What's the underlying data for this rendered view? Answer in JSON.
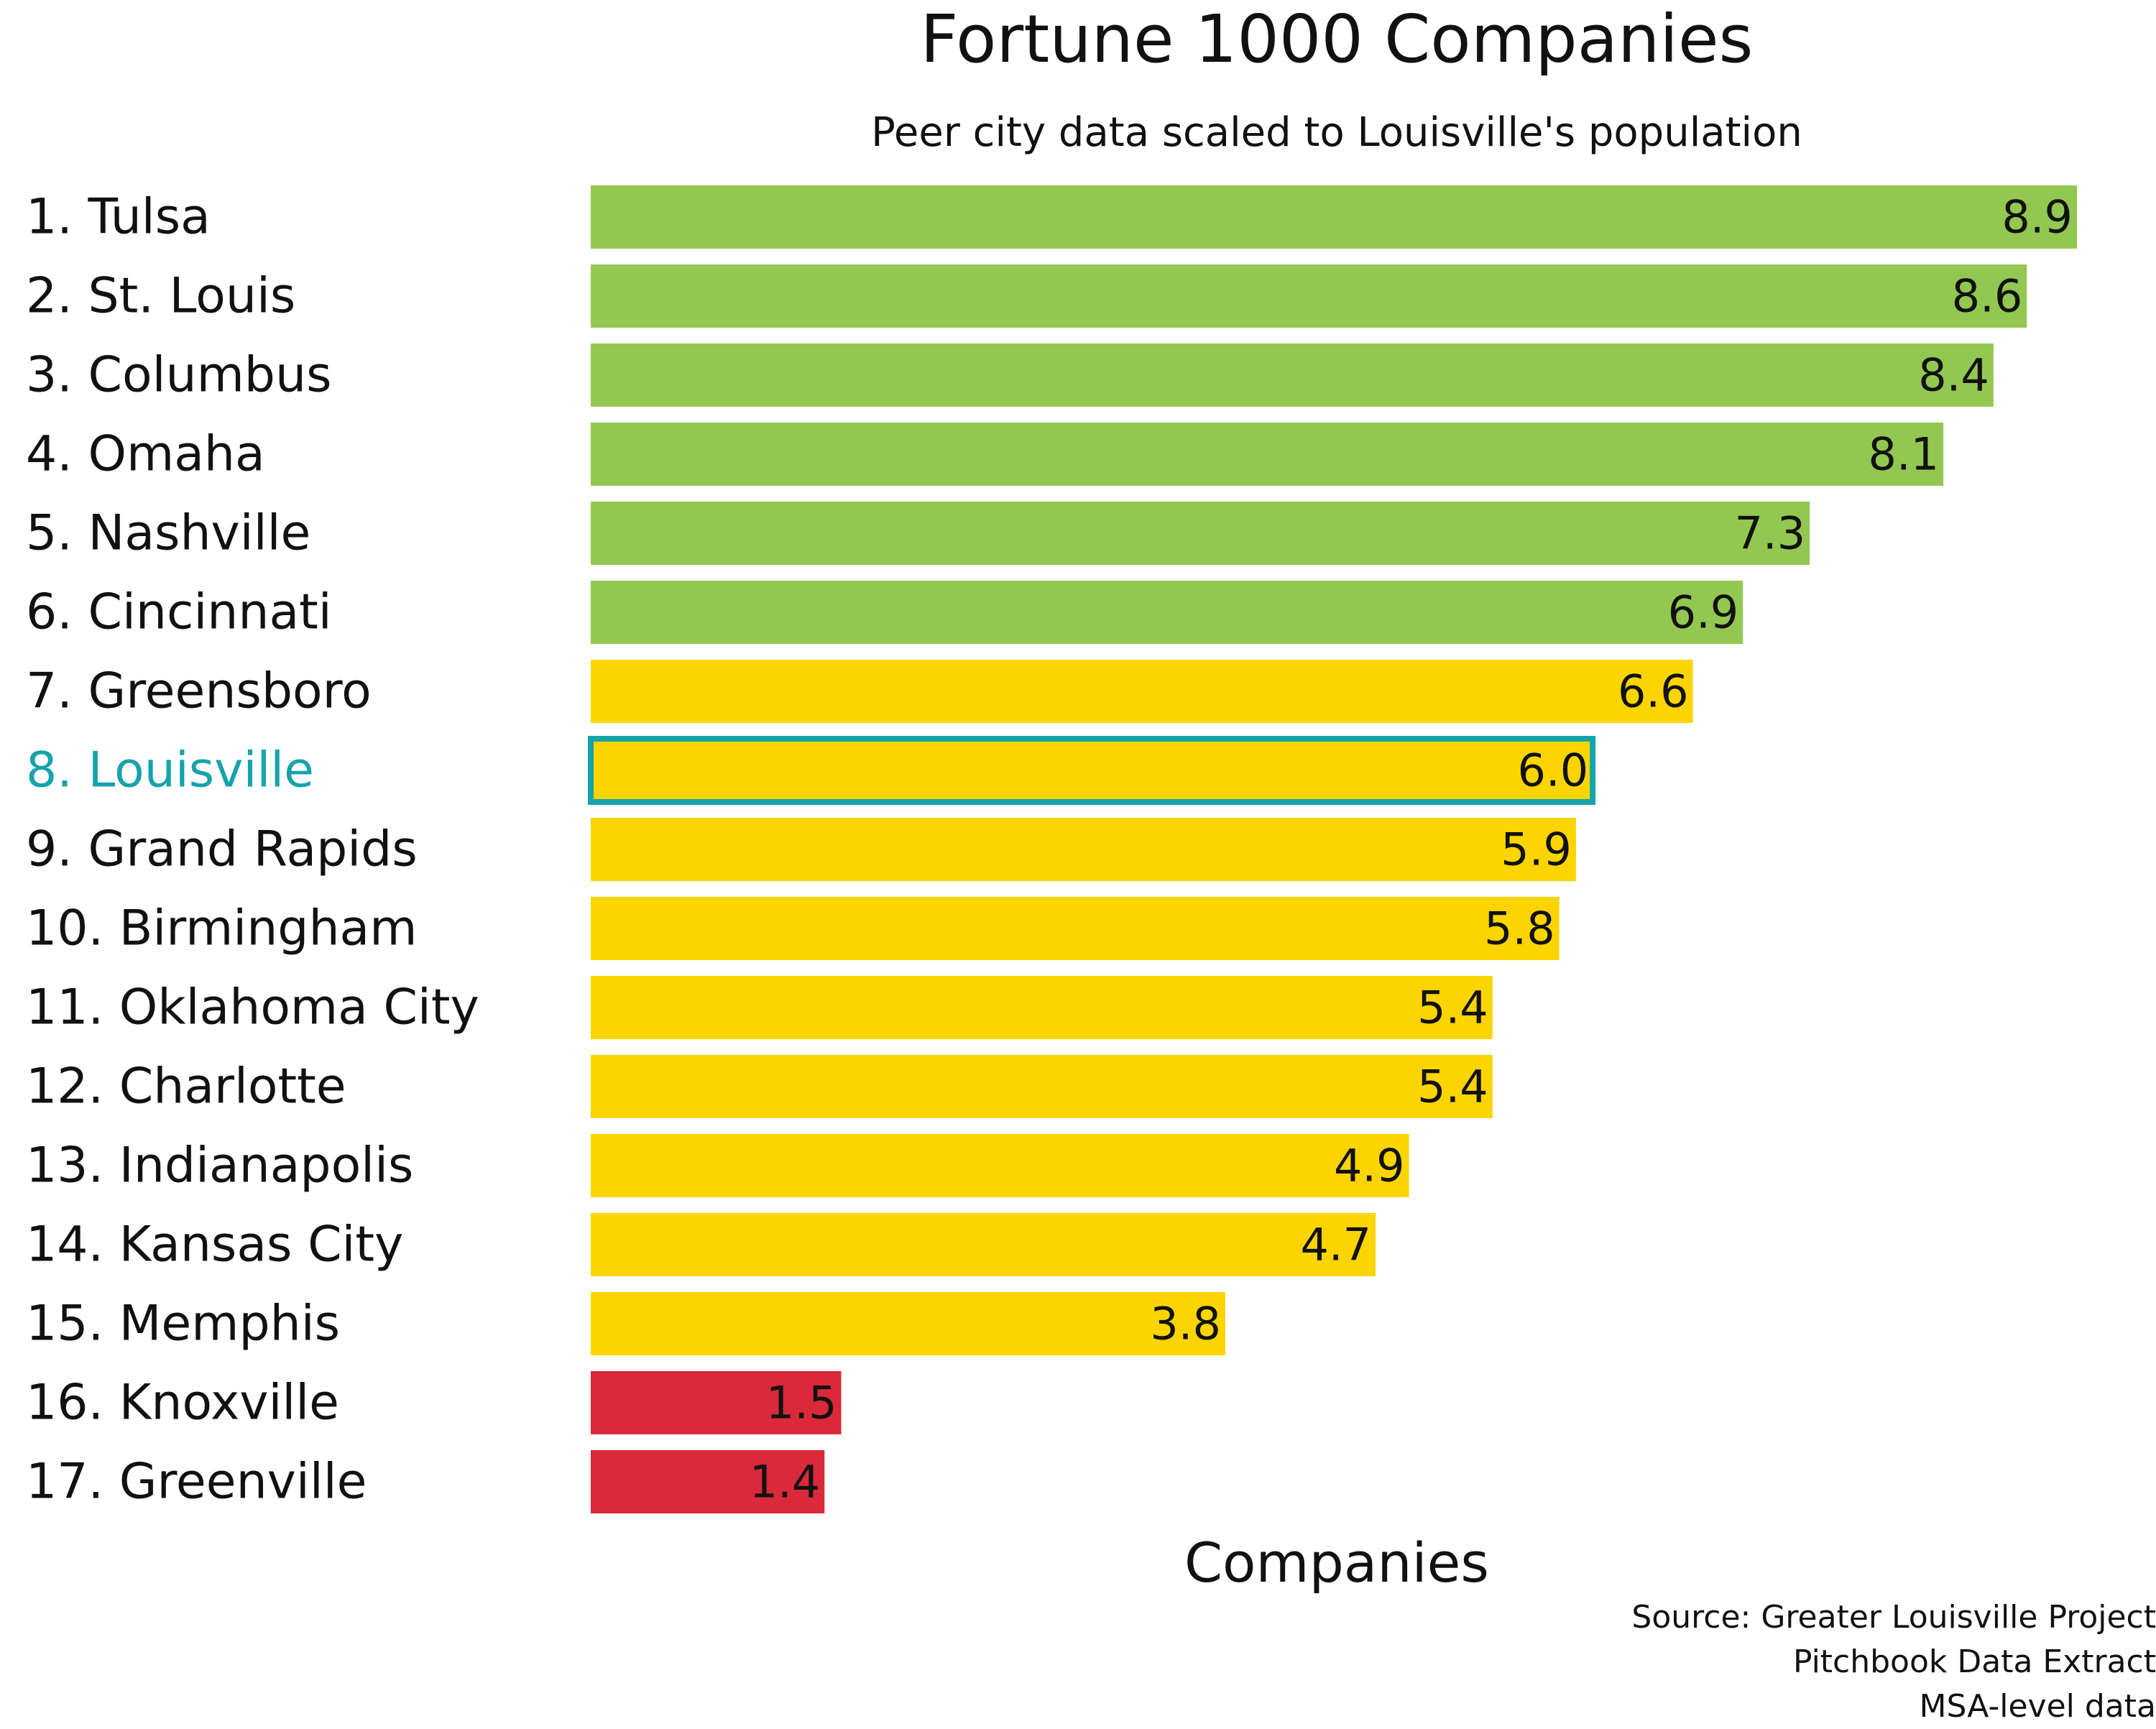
{
  "chart_data": {
    "type": "bar",
    "orientation": "horizontal",
    "title": "Fortune 1000 Companies",
    "subtitle": "Peer city data scaled to Louisville's population",
    "xlabel": "Companies",
    "ylabel": "",
    "xlim": [
      0,
      8.9
    ],
    "grid": false,
    "highlight_category": "8. Louisville",
    "categories": [
      "1. Tulsa",
      "2. St. Louis",
      "3. Columbus",
      "4. Omaha",
      "5. Nashville",
      "6. Cincinnati",
      "7. Greensboro",
      "8. Louisville",
      "9. Grand Rapids",
      "10. Birmingham",
      "11. Oklahoma City",
      "12. Charlotte",
      "13. Indianapolis",
      "14. Kansas City",
      "15. Memphis",
      "16. Knoxville",
      "17. Greenville"
    ],
    "values": [
      8.9,
      8.6,
      8.4,
      8.1,
      7.3,
      6.9,
      6.6,
      6.0,
      5.9,
      5.8,
      5.4,
      5.4,
      4.9,
      4.7,
      3.8,
      1.5,
      1.4
    ],
    "value_labels": [
      "8.9",
      "8.6",
      "8.4",
      "8.1",
      "7.3",
      "6.9",
      "6.6",
      "6.0",
      "5.9",
      "5.8",
      "5.4",
      "5.4",
      "4.9",
      "4.7",
      "3.8",
      "1.5",
      "1.4"
    ],
    "bar_colors": [
      "#92c851",
      "#92c851",
      "#92c851",
      "#92c851",
      "#92c851",
      "#92c851",
      "#fcd400",
      "#fcd400",
      "#fcd400",
      "#fcd400",
      "#fcd400",
      "#fcd400",
      "#fcd400",
      "#fcd400",
      "#fcd400",
      "#d9293a",
      "#d9293a"
    ],
    "colors": {
      "green": "#92c851",
      "yellow": "#fcd400",
      "red": "#d9293a",
      "highlight": "#15a3ac"
    }
  },
  "source_lines": [
    "Source: Greater Louisville Project",
    "Pitchbook Data Extract",
    "MSA-level data"
  ]
}
